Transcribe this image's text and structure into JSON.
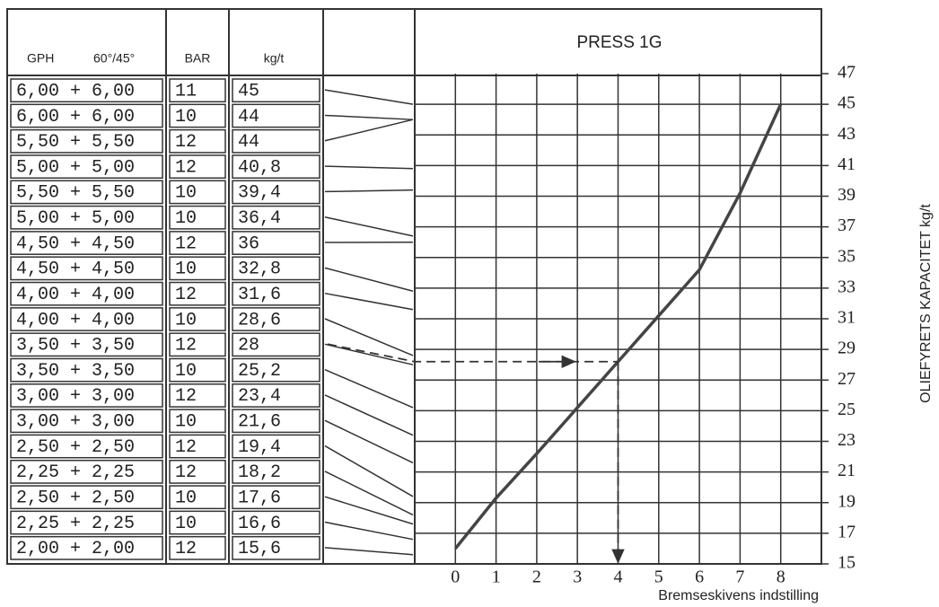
{
  "table": {
    "header": [
      "GPH",
      "60°/45°",
      "BAR",
      "kg/t"
    ],
    "rows": [
      [
        "6,00 + 6,00",
        "11",
        "45"
      ],
      [
        "6,00 + 6,00",
        "10",
        "44"
      ],
      [
        "5,50 + 5,50",
        "12",
        "44"
      ],
      [
        "5,00 + 5,00",
        "12",
        "40,8"
      ],
      [
        "5,50 + 5,50",
        "10",
        "39,4"
      ],
      [
        "5,00 + 5,00",
        "10",
        "36,4"
      ],
      [
        "4,50 + 4,50",
        "12",
        "36"
      ],
      [
        "4,50 + 4,50",
        "10",
        "32,8"
      ],
      [
        "4,00 + 4,00",
        "12",
        "31,6"
      ],
      [
        "4,00 + 4,00",
        "10",
        "28,6"
      ],
      [
        "3,50 + 3,50",
        "12",
        "28"
      ],
      [
        "3,50 + 3,50",
        "10",
        "25,2"
      ],
      [
        "3,00 + 3,00",
        "12",
        "23,4"
      ],
      [
        "3,00 + 3,00",
        "10",
        "21,6"
      ],
      [
        "2,50 + 2,50",
        "12",
        "19,4"
      ],
      [
        "2,25 + 2,25",
        "12",
        "18,2"
      ],
      [
        "2,50 + 2,50",
        "10",
        "17,6"
      ],
      [
        "2,25 + 2,25",
        "10",
        "16,6"
      ],
      [
        "2,00 + 2,00",
        "12",
        "15,6"
      ]
    ]
  },
  "chart_data": {
    "type": "line",
    "title": "PRESS 1G",
    "x_label": "Bremseskivens indstilling",
    "y_label": "OLIEFYRETS KAPACITET kg/t",
    "x": [
      0,
      1,
      2,
      3,
      4,
      5,
      6,
      7,
      8
    ],
    "series": [
      {
        "name": null,
        "color": "#444",
        "values": [
          16,
          19.3,
          22.2,
          25.2,
          28.2,
          31.2,
          34.2,
          39.2,
          45
        ]
      }
    ],
    "guide": {
      "x": 4,
      "y": 28.2,
      "row": 10
    },
    "xlim": [
      -1,
      9
    ],
    "xticks": [
      0,
      1,
      2,
      3,
      4,
      5,
      6,
      7,
      8
    ],
    "ylim": [
      15,
      47
    ],
    "yticks": [
      15,
      17,
      19,
      21,
      23,
      25,
      27,
      29,
      31,
      33,
      35,
      37,
      39,
      41,
      43,
      45,
      47
    ],
    "grid": true
  }
}
